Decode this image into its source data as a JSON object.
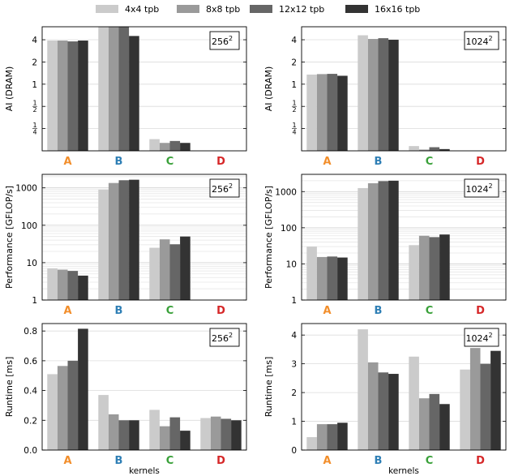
{
  "legend": [
    {
      "label": "4x4 tpb",
      "color": "#cbcbcb"
    },
    {
      "label": "8x8 tpb",
      "color": "#9a9a9a"
    },
    {
      "label": "12x12 tpb",
      "color": "#666666"
    },
    {
      "label": "16x16 tpb",
      "color": "#333333"
    }
  ],
  "kernel_colors": {
    "A": "#f28e2b",
    "B": "#2f7fb5",
    "C": "#3aa13a",
    "D": "#d62728"
  },
  "chart_data": [
    {
      "type": "bar",
      "row": 0,
      "col": 0,
      "categories": [
        "A",
        "B",
        "C",
        "D"
      ],
      "box_label_base": "256",
      "box_label_exp": "2",
      "ylabel": "AI (DRAM)",
      "xlabel": "",
      "yscale": "log2",
      "ylim": [
        0.125,
        6
      ],
      "yticks": [
        0.25,
        0.5,
        1,
        2,
        4
      ],
      "ytick_labels": [
        "1/4",
        "1/2",
        "1",
        "2",
        "4"
      ],
      "series": [
        {
          "name": "4x4 tpb",
          "values": [
            3.9,
            6.0,
            0.18,
            null
          ]
        },
        {
          "name": "8x8 tpb",
          "values": [
            3.9,
            6.0,
            0.16,
            null
          ]
        },
        {
          "name": "12x12 tpb",
          "values": [
            3.8,
            6.0,
            0.17,
            null
          ]
        },
        {
          "name": "16x16 tpb",
          "values": [
            3.9,
            4.5,
            0.16,
            null
          ]
        }
      ]
    },
    {
      "type": "bar",
      "row": 0,
      "col": 1,
      "categories": [
        "A",
        "B",
        "C",
        "D"
      ],
      "box_label_base": "1024",
      "box_label_exp": "2",
      "ylabel": "AI (DRAM)",
      "xlabel": "",
      "yscale": "log2",
      "ylim": [
        0.125,
        6
      ],
      "yticks": [
        0.25,
        0.5,
        1,
        2,
        4
      ],
      "ytick_labels": [
        "1/4",
        "1/2",
        "1",
        "2",
        "4"
      ],
      "series": [
        {
          "name": "4x4 tpb",
          "values": [
            1.35,
            4.6,
            0.145,
            null
          ]
        },
        {
          "name": "8x8 tpb",
          "values": [
            1.37,
            4.1,
            0.13,
            null
          ]
        },
        {
          "name": "12x12 tpb",
          "values": [
            1.38,
            4.2,
            0.14,
            null
          ]
        },
        {
          "name": "16x16 tpb",
          "values": [
            1.3,
            4.0,
            0.132,
            null
          ]
        }
      ]
    },
    {
      "type": "bar",
      "row": 1,
      "col": 0,
      "categories": [
        "A",
        "B",
        "C",
        "D"
      ],
      "box_label_base": "256",
      "box_label_exp": "2",
      "ylabel": "Performance [GFLOP/s]",
      "xlabel": "",
      "yscale": "log10",
      "ylim": [
        1,
        2300
      ],
      "yticks": [
        1,
        10,
        100,
        1000
      ],
      "ytick_labels": [
        "1",
        "10",
        "100",
        "1000"
      ],
      "series": [
        {
          "name": "4x4 tpb",
          "values": [
            7,
            900,
            25,
            null
          ]
        },
        {
          "name": "8x8 tpb",
          "values": [
            6.5,
            1350,
            42,
            null
          ]
        },
        {
          "name": "12x12 tpb",
          "values": [
            6,
            1600,
            31,
            null
          ]
        },
        {
          "name": "16x16 tpb",
          "values": [
            4.5,
            1650,
            50,
            null
          ]
        }
      ]
    },
    {
      "type": "bar",
      "row": 1,
      "col": 1,
      "categories": [
        "A",
        "B",
        "C",
        "D"
      ],
      "box_label_base": "1024",
      "box_label_exp": "2",
      "ylabel": "Performance [GFLOP/s]",
      "xlabel": "",
      "yscale": "log10",
      "ylim": [
        1,
        3000
      ],
      "yticks": [
        1,
        10,
        100,
        1000
      ],
      "ytick_labels": [
        "1",
        "10",
        "100",
        "1000"
      ],
      "series": [
        {
          "name": "4x4 tpb",
          "values": [
            30,
            1250,
            33,
            null
          ]
        },
        {
          "name": "8x8 tpb",
          "values": [
            15.5,
            1700,
            60,
            null
          ]
        },
        {
          "name": "12x12 tpb",
          "values": [
            16,
            1950,
            55,
            null
          ]
        },
        {
          "name": "16x16 tpb",
          "values": [
            15,
            2000,
            65,
            null
          ]
        }
      ]
    },
    {
      "type": "bar",
      "row": 2,
      "col": 0,
      "categories": [
        "A",
        "B",
        "C",
        "D"
      ],
      "box_label_base": "256",
      "box_label_exp": "2",
      "ylabel": "Runtime [ms]",
      "xlabel": "kernels",
      "yscale": "linear",
      "ylim": [
        0,
        0.85
      ],
      "yticks": [
        0,
        0.2,
        0.4,
        0.6,
        0.8
      ],
      "ytick_labels": [
        "0.0",
        "0.2",
        "0.4",
        "0.6",
        "0.8"
      ],
      "series": [
        {
          "name": "4x4 tpb",
          "values": [
            0.51,
            0.37,
            0.27,
            0.215
          ]
        },
        {
          "name": "8x8 tpb",
          "values": [
            0.565,
            0.24,
            0.16,
            0.225
          ]
        },
        {
          "name": "12x12 tpb",
          "values": [
            0.6,
            0.2,
            0.22,
            0.21
          ]
        },
        {
          "name": "16x16 tpb",
          "values": [
            0.815,
            0.2,
            0.13,
            0.2
          ]
        }
      ]
    },
    {
      "type": "bar",
      "row": 2,
      "col": 1,
      "categories": [
        "A",
        "B",
        "C",
        "D"
      ],
      "box_label_base": "1024",
      "box_label_exp": "2",
      "ylabel": "Runtime [ms]",
      "xlabel": "kernels",
      "yscale": "linear",
      "ylim": [
        0,
        4.4
      ],
      "yticks": [
        0,
        1,
        2,
        3,
        4
      ],
      "ytick_labels": [
        "0",
        "1",
        "2",
        "3",
        "4"
      ],
      "series": [
        {
          "name": "4x4 tpb",
          "values": [
            0.45,
            4.2,
            3.25,
            2.8
          ]
        },
        {
          "name": "8x8 tpb",
          "values": [
            0.9,
            3.05,
            1.8,
            3.55
          ]
        },
        {
          "name": "12x12 tpb",
          "values": [
            0.9,
            2.7,
            1.95,
            3.0
          ]
        },
        {
          "name": "16x16 tpb",
          "values": [
            0.95,
            2.65,
            1.6,
            3.45
          ]
        }
      ]
    }
  ]
}
